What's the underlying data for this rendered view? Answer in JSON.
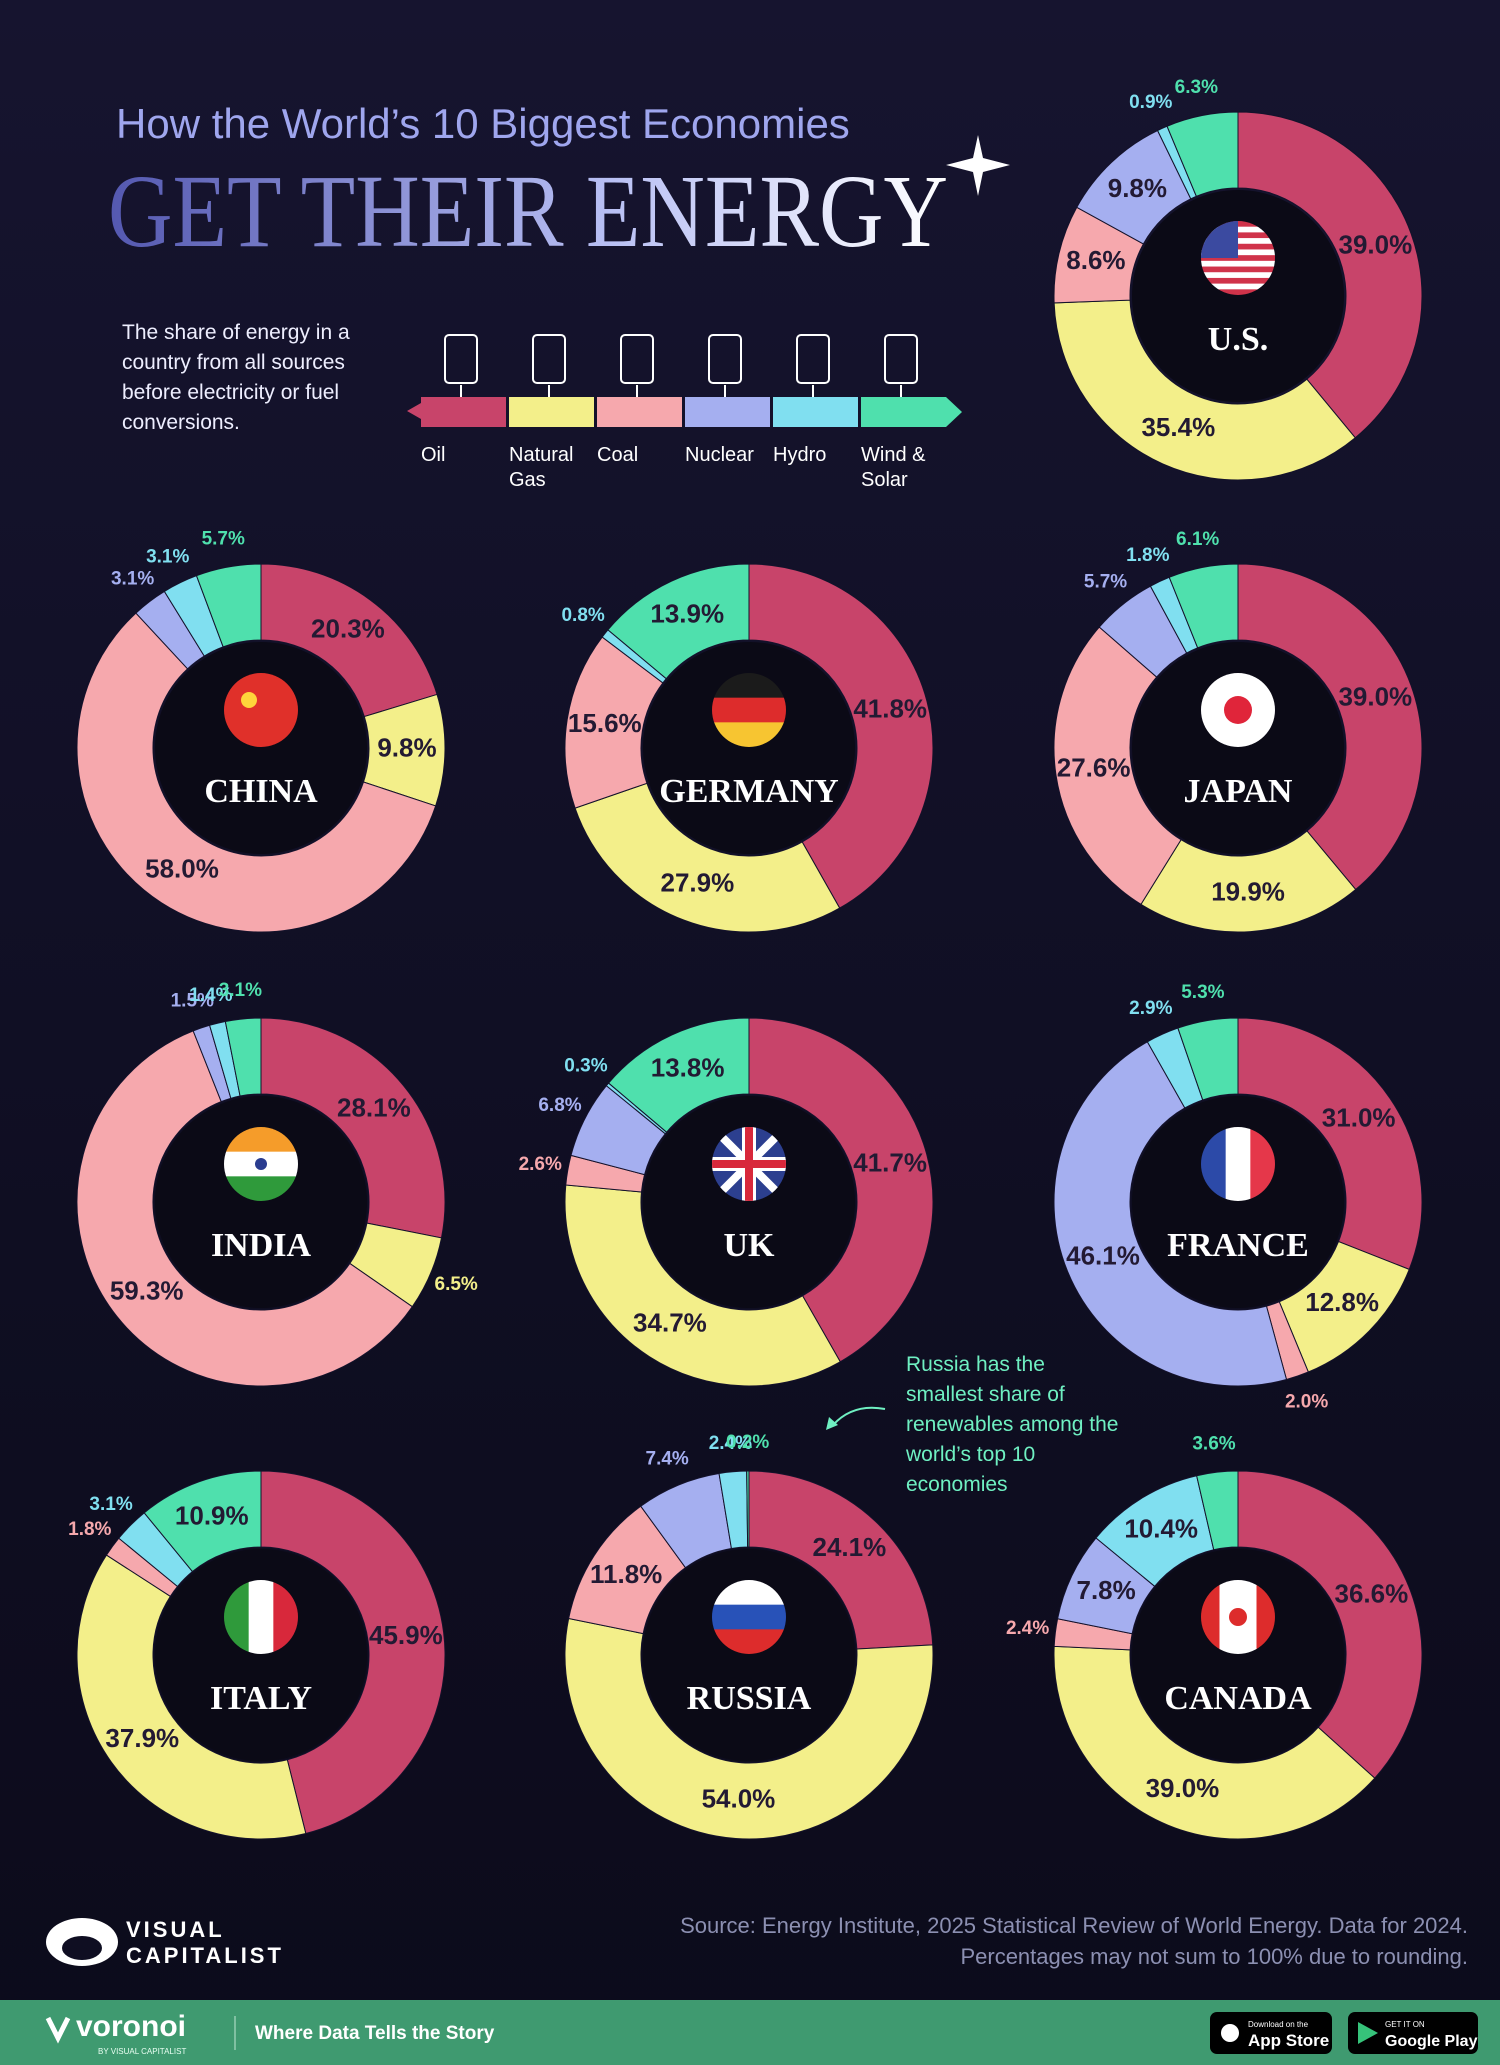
{
  "header": {
    "subtitle": "How the World’s 10 Biggest Economies",
    "title": "GET THEIR ENERGY"
  },
  "description": "The share of energy in a country from all sources before electricity or fuel conversions.",
  "legend": {
    "categories": [
      "Oil",
      "Natural Gas",
      "Coal",
      "Nuclear",
      "Hydro",
      "Wind & Solar"
    ],
    "colors": [
      "#c8446a",
      "#f3ef8a",
      "#f6a8ad",
      "#a5aff0",
      "#80dff0",
      "#4fe0ad"
    ]
  },
  "chart_data": [
    {
      "type": "donut",
      "title": "U.S.",
      "values": [
        39.0,
        35.4,
        8.6,
        9.8,
        0.9,
        6.3
      ],
      "value_labels": [
        "39.0%",
        "35.4%",
        "8.6%",
        "9.8%",
        "0.9%",
        "6.3%"
      ]
    },
    {
      "type": "donut",
      "title": "CHINA",
      "values": [
        20.3,
        9.8,
        58.0,
        3.1,
        3.1,
        5.7
      ],
      "value_labels": [
        "20.3%",
        "9.8%",
        "58.0%",
        "3.1%",
        "3.1%",
        "5.7%"
      ]
    },
    {
      "type": "donut",
      "title": "GERMANY",
      "values": [
        41.8,
        27.9,
        15.6,
        null,
        0.8,
        13.9
      ],
      "value_labels": [
        "41.8%",
        "27.9%",
        "15.6%",
        null,
        "0.8%",
        "13.9%"
      ]
    },
    {
      "type": "donut",
      "title": "JAPAN",
      "values": [
        39.0,
        19.9,
        27.6,
        5.7,
        1.8,
        6.1
      ],
      "value_labels": [
        "39.0%",
        "19.9%",
        "27.6%",
        "5.7%",
        "1.8%",
        "6.1%"
      ]
    },
    {
      "type": "donut",
      "title": "INDIA",
      "values": [
        28.1,
        6.5,
        59.3,
        1.5,
        1.4,
        3.1
      ],
      "value_labels": [
        "28.1%",
        "6.5%",
        "59.3%",
        "1.5%",
        "1.4%",
        "3.1%"
      ]
    },
    {
      "type": "donut",
      "title": "UK",
      "values": [
        41.7,
        34.7,
        2.6,
        6.8,
        0.3,
        13.8
      ],
      "value_labels": [
        "41.7%",
        "34.7%",
        "2.6%",
        "6.8%",
        "0.3%",
        "13.8%"
      ]
    },
    {
      "type": "donut",
      "title": "FRANCE",
      "values": [
        31.0,
        12.8,
        2.0,
        46.1,
        2.9,
        5.3
      ],
      "value_labels": [
        "31.0%",
        "12.8%",
        "2.0%",
        "46.1%",
        "2.9%",
        "5.3%"
      ]
    },
    {
      "type": "donut",
      "title": "ITALY",
      "values": [
        45.9,
        37.9,
        1.8,
        null,
        3.1,
        10.9
      ],
      "value_labels": [
        "45.9%",
        "37.9%",
        "1.8%",
        null,
        "3.1%",
        "10.9%"
      ]
    },
    {
      "type": "donut",
      "title": "RUSSIA",
      "values": [
        24.1,
        54.0,
        11.8,
        7.4,
        2.4,
        0.2
      ],
      "value_labels": [
        "24.1%",
        "54.0%",
        "11.8%",
        "7.4%",
        "2.4%",
        "0.2%"
      ]
    },
    {
      "type": "donut",
      "title": "CANADA",
      "values": [
        36.6,
        39.0,
        2.4,
        7.8,
        10.4,
        3.6
      ],
      "value_labels": [
        "36.6%",
        "39.0%",
        "2.4%",
        "7.8%",
        "10.4%",
        "3.6%"
      ]
    }
  ],
  "annotation": "Russia has the smallest share of renewables among the world’s top 10 economies",
  "source": "Source: Energy Institute, 2025 Statistical Review of World Energy. Data for 2024.",
  "note": "Percentages may not sum to 100% due to rounding.",
  "logo": {
    "line1": "VISUAL",
    "line2": "CAPITALIST"
  },
  "footer": {
    "brand": "voronoi",
    "by": "BY VISUAL CAPITALIST",
    "tagline": "Where Data Tells the Story",
    "app_store_small": "Download on the",
    "app_store": "App Store",
    "google_play_small": "GET IT ON",
    "google_play": "Google Play"
  }
}
